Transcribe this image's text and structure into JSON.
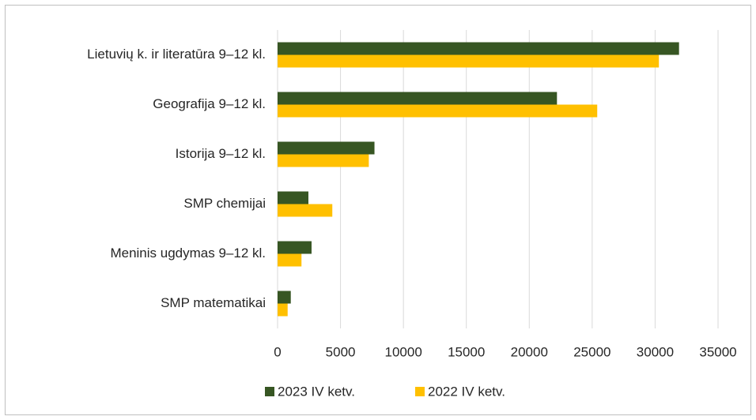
{
  "chart_data": {
    "type": "bar",
    "orientation": "horizontal",
    "categories": [
      "Lietuvių k. ir literatūra 9–12 kl.",
      "Geografija 9–12 kl.",
      "Istorija 9–12 kl.",
      "SMP chemijai",
      "Meninis ugdymas 9–12 kl.",
      "SMP matematikai"
    ],
    "series": [
      {
        "name": "2023 IV ketv.",
        "color": "#375623",
        "values": [
          31900,
          22200,
          7700,
          2450,
          2700,
          1050
        ]
      },
      {
        "name": "2022 IV ketv.",
        "color": "#ffc000",
        "values": [
          30300,
          25400,
          7250,
          4350,
          1900,
          800
        ]
      }
    ],
    "xlim": [
      0,
      35000
    ],
    "xticks": [
      0,
      5000,
      10000,
      15000,
      20000,
      25000,
      30000,
      35000
    ],
    "grid": true,
    "legend": "bottom"
  }
}
